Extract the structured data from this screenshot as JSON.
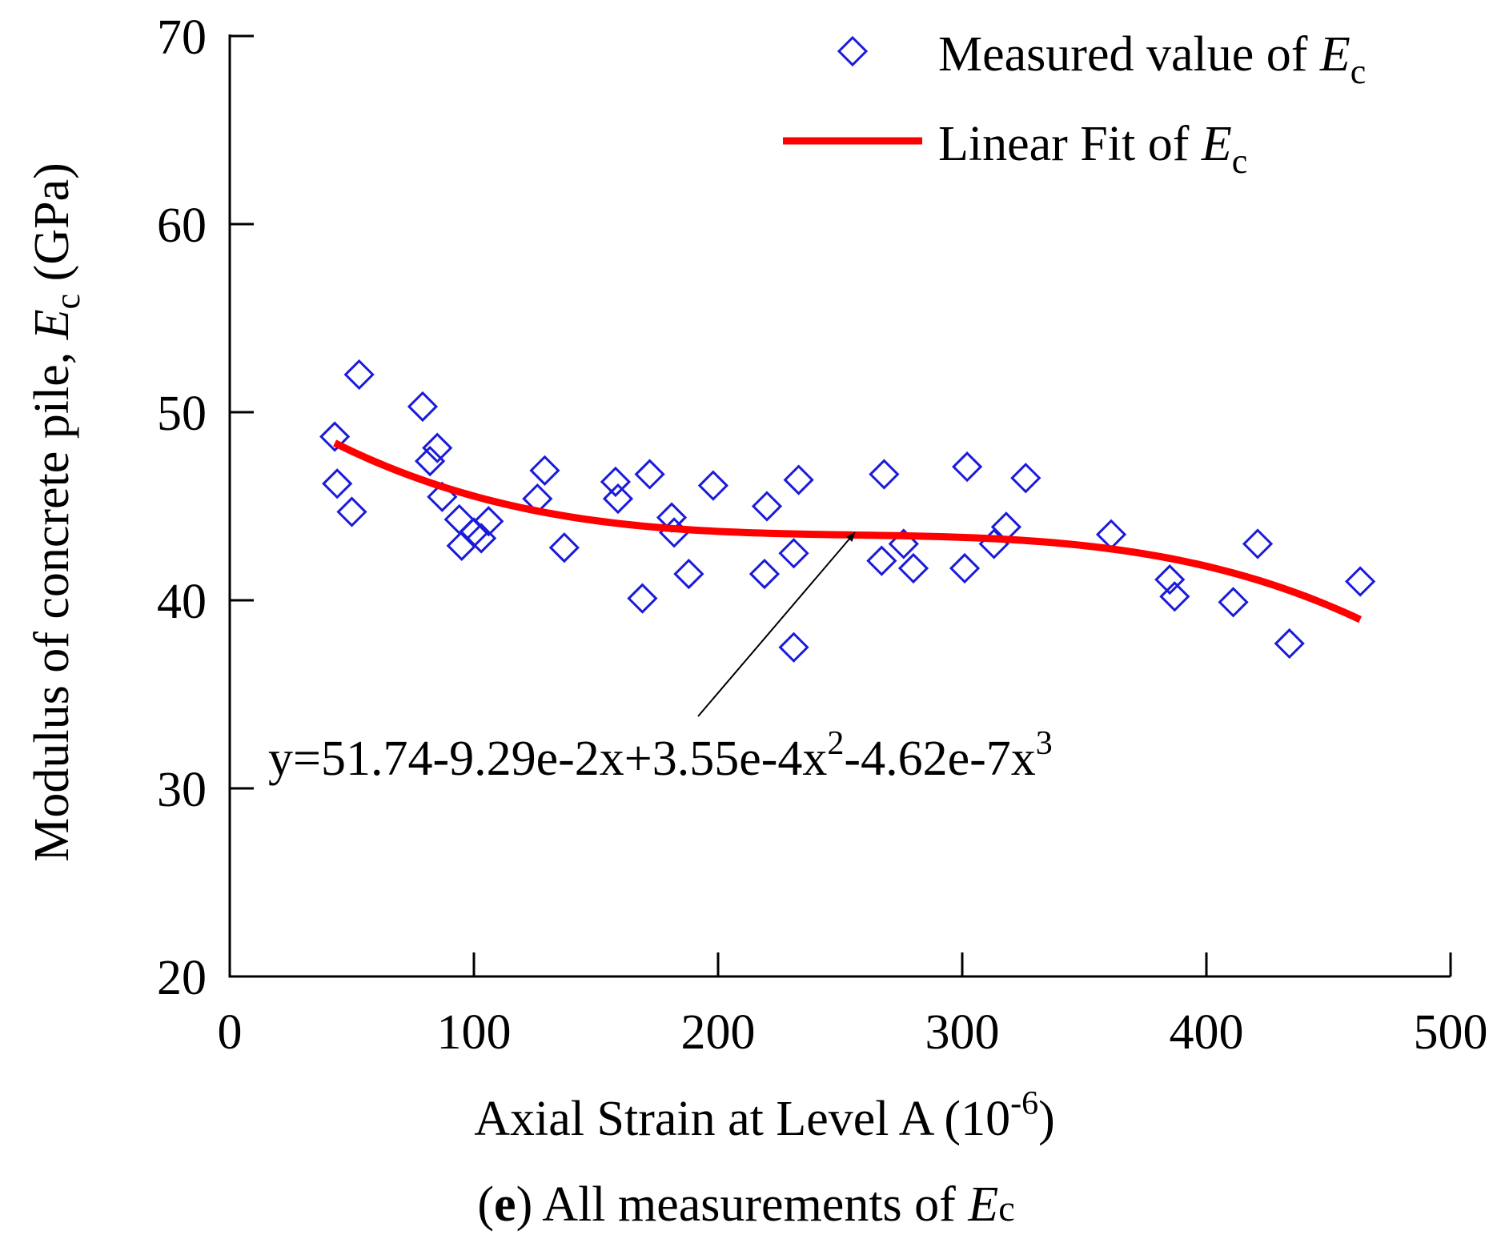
{
  "chart_data": {
    "type": "scatter",
    "caption_letter": "e",
    "caption_rest": " All measurements of ",
    "caption_var": "E",
    "caption_sub": "c",
    "xlabel_main": "Axial Strain at Level A (10",
    "xlabel_sup": "-6",
    "xlabel_end": ")",
    "ylabel_main": "Modulus of concrete pile, ",
    "ylabel_var": "E",
    "ylabel_sub": "c",
    "ylabel_end": " (GPa)",
    "xlim": [
      0,
      500
    ],
    "ylim": [
      20,
      70
    ],
    "xticks": [
      0,
      100,
      200,
      300,
      400,
      500
    ],
    "yticks": [
      20,
      30,
      40,
      50,
      60,
      70
    ],
    "xtick_labels": [
      "0",
      "100",
      "200",
      "300",
      "400",
      "500"
    ],
    "ytick_labels": [
      "20",
      "30",
      "40",
      "50",
      "60",
      "70"
    ],
    "legend": {
      "position": "top-right",
      "entries": [
        {
          "label": "Measured value of ",
          "var": "E",
          "sub": "c",
          "marker": "diamond",
          "color": "#1a1adc"
        },
        {
          "label": "Linear Fit of ",
          "var": "E",
          "sub": "c",
          "marker": "line",
          "color": "#ff0000"
        }
      ]
    },
    "series": [
      {
        "name": "Measured value of Ec",
        "marker": "diamond",
        "color": "#1a1adc",
        "points": [
          [
            43,
            48.7
          ],
          [
            44,
            46.2
          ],
          [
            50,
            44.7
          ],
          [
            53,
            52.0
          ],
          [
            79,
            50.3
          ],
          [
            82,
            47.4
          ],
          [
            85,
            48.1
          ],
          [
            87,
            45.5
          ],
          [
            94,
            44.3
          ],
          [
            95,
            42.9
          ],
          [
            100,
            43.6
          ],
          [
            103,
            43.3
          ],
          [
            106,
            44.2
          ],
          [
            126,
            45.4
          ],
          [
            129,
            46.9
          ],
          [
            137,
            42.8
          ],
          [
            158,
            46.3
          ],
          [
            159,
            45.4
          ],
          [
            169,
            40.1
          ],
          [
            172,
            46.7
          ],
          [
            181,
            44.4
          ],
          [
            182,
            43.6
          ],
          [
            188,
            41.4
          ],
          [
            198,
            46.1
          ],
          [
            220,
            45.0
          ],
          [
            219,
            41.4
          ],
          [
            231,
            42.5
          ],
          [
            233,
            46.4
          ],
          [
            231,
            37.5
          ],
          [
            268,
            46.7
          ],
          [
            267,
            42.1
          ],
          [
            276,
            43.0
          ],
          [
            280,
            41.7
          ],
          [
            302,
            47.1
          ],
          [
            301,
            41.7
          ],
          [
            313,
            43.0
          ],
          [
            318,
            43.9
          ],
          [
            326,
            46.5
          ],
          [
            361,
            43.5
          ],
          [
            385,
            41.1
          ],
          [
            387,
            40.2
          ],
          [
            411,
            39.9
          ],
          [
            421,
            43.0
          ],
          [
            434,
            37.7
          ],
          [
            463,
            41.0
          ]
        ]
      },
      {
        "name": "Linear Fit of Ec",
        "type": "line",
        "color": "#ff0000",
        "model": "cubic",
        "coefficients": [
          51.74,
          -0.0929,
          0.000355,
          -4.62e-07
        ],
        "x_range": [
          43,
          463
        ]
      }
    ],
    "annotation": {
      "parts": [
        {
          "text": "y=51.74-9.29e-2x+3.55e-4x",
          "sup": false
        },
        {
          "text": "2",
          "sup": true
        },
        {
          "text": "-4.62e-7x",
          "sup": false
        },
        {
          "text": "3",
          "sup": true
        }
      ],
      "arrow_to": [
        256,
        43.6
      ]
    }
  }
}
